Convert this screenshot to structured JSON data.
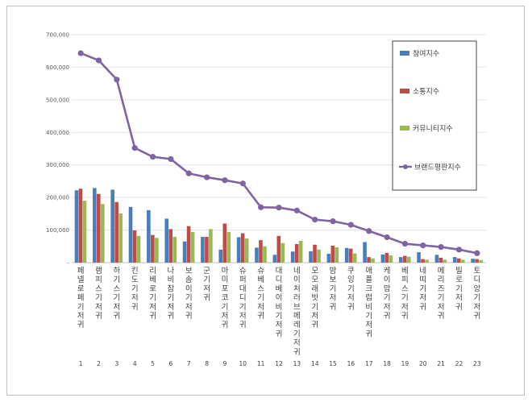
{
  "chart_data": {
    "type": "bar",
    "title": "",
    "xlabel": "",
    "ylabel": "",
    "ylim": [
      0,
      700000
    ],
    "yticks": [
      0,
      100000,
      200000,
      300000,
      400000,
      500000,
      600000,
      700000
    ],
    "ytick_labels": [
      "-",
      "100,000",
      "200,000",
      "300,000",
      "400,000",
      "500,000",
      "600,000",
      "700,000"
    ],
    "grid": true,
    "legend_position": "right",
    "categories": [
      "페넬로페기저귀",
      "램피스기저귀",
      "하기스기저귀",
      "킨도기저귀",
      "리베로기저귀",
      "나비잠기저귀",
      "보솜이기저귀",
      "군기저귀",
      "마미포코기저귀",
      "슈퍼대디기저귀",
      "슈베스기저귀",
      "대디베이비기저귀",
      "네이처러브메레기저귀",
      "모모래빗기저귀",
      "밤보기저귀",
      "쿠잉기저귀",
      "애플크럼비기저귀",
      "케이맘기저귀",
      "베피스기저귀",
      "네띠기저귀",
      "메리즈기저귀",
      "빌로기저귀",
      "토디앙기저귀"
    ],
    "indices": [
      "1",
      "2",
      "3",
      "4",
      "5",
      "6",
      "7",
      "8",
      "9",
      "10",
      "11",
      "12",
      "13",
      "14",
      "15",
      "16",
      "17",
      "18",
      "19",
      "20",
      "21",
      "22",
      "23"
    ],
    "series": [
      {
        "name": "참여지수",
        "type": "bar",
        "color": "#4a7ebb",
        "values": [
          222000,
          229000,
          224000,
          171000,
          161000,
          135000,
          65000,
          79000,
          40000,
          78000,
          46000,
          24000,
          34000,
          35000,
          27000,
          45000,
          63000,
          25000,
          17000,
          32000,
          24000,
          17000,
          12000
        ]
      },
      {
        "name": "소통지수",
        "type": "bar",
        "color": "#be4b48",
        "values": [
          227000,
          211000,
          186000,
          99000,
          85000,
          103000,
          112000,
          79000,
          120000,
          90000,
          69000,
          82000,
          57000,
          55000,
          52000,
          43000,
          17000,
          30000,
          21000,
          11000,
          15000,
          13000,
          11000
        ]
      },
      {
        "name": "커뮤니티지수",
        "type": "bar",
        "color": "#98b954",
        "values": [
          190000,
          180000,
          151000,
          82000,
          76000,
          79000,
          94000,
          103000,
          94000,
          74000,
          50000,
          60000,
          67000,
          40000,
          47000,
          28000,
          13000,
          22000,
          18000,
          9000,
          9000,
          9000,
          8000
        ]
      },
      {
        "name": "브랜드평판지수",
        "type": "line",
        "color": "#7f63a2",
        "values": [
          643000,
          621000,
          562000,
          352000,
          325000,
          318000,
          274000,
          262000,
          253000,
          243000,
          170000,
          169000,
          160000,
          132000,
          127000,
          116000,
          97000,
          78000,
          58000,
          53000,
          48000,
          40000,
          29000
        ]
      }
    ]
  }
}
